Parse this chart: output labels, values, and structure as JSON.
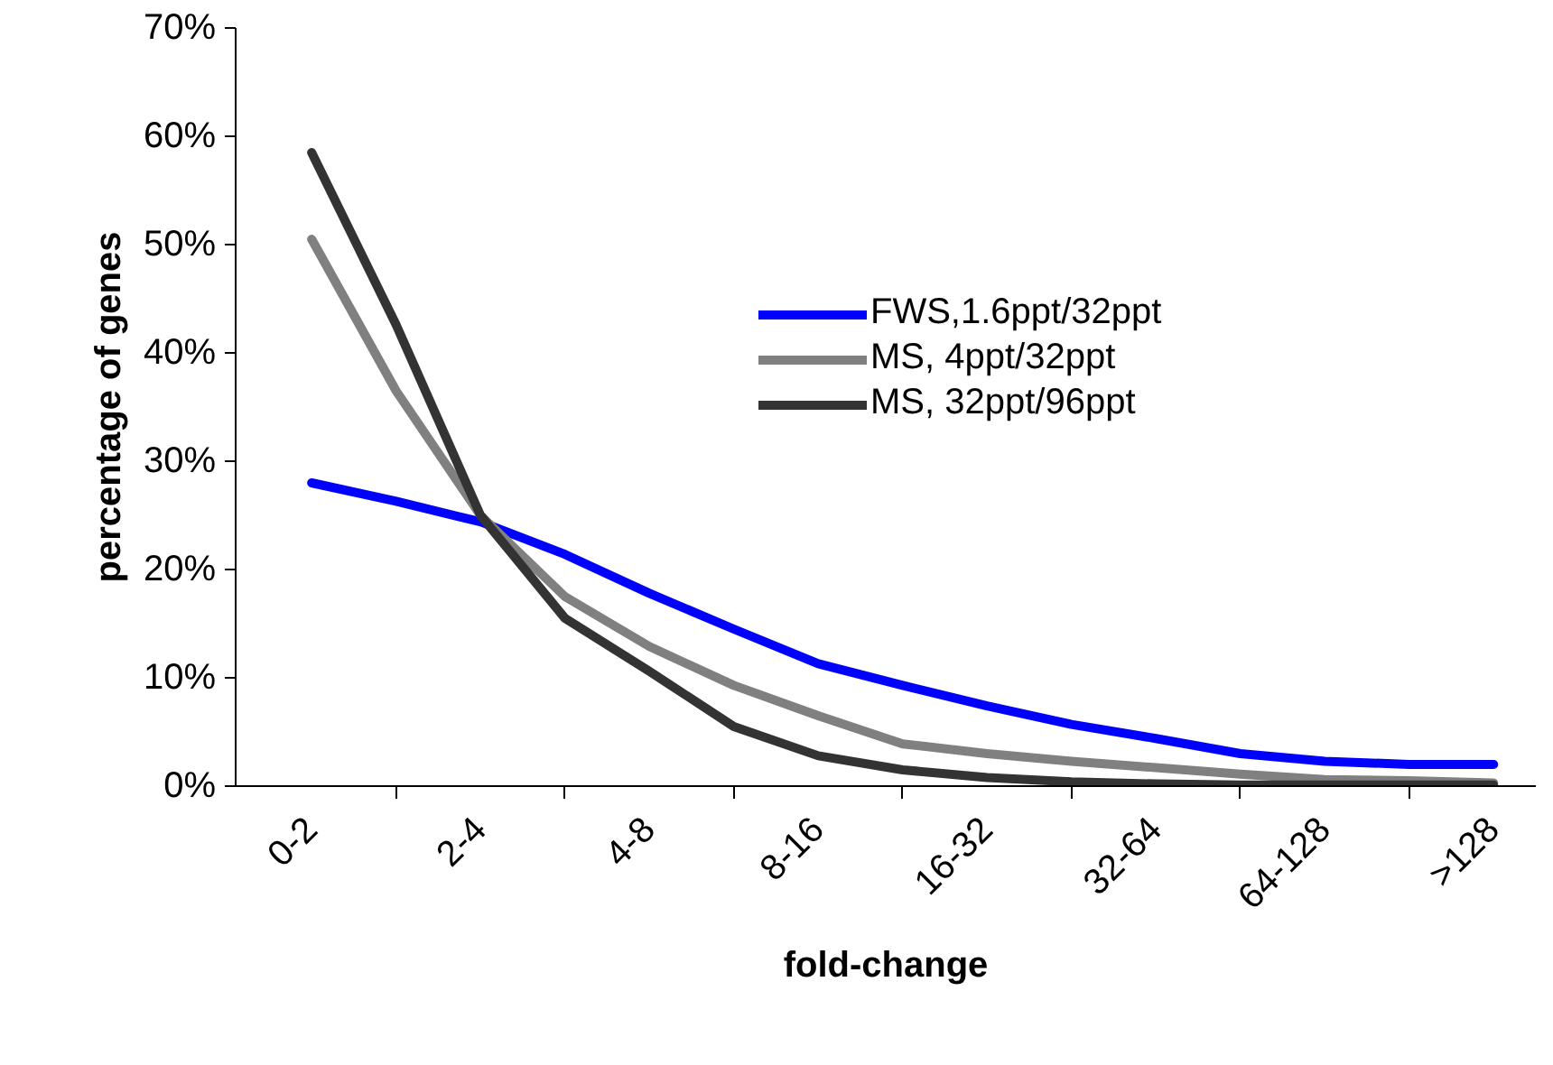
{
  "chart_data": {
    "type": "line",
    "xlabel": "fold-change",
    "ylabel": "percentage of genes",
    "categories": [
      "0-2",
      null,
      "2-4",
      null,
      "4-8",
      null,
      "8-16",
      null,
      "16-32",
      null,
      "32-64",
      null,
      "64-128",
      null,
      ">128"
    ],
    "series": [
      {
        "name": "FWS,1.6ppt/32ppt",
        "color": "#0000ff",
        "values": [
          28.0,
          26.3,
          24.4,
          21.4,
          17.8,
          14.5,
          11.3,
          9.3,
          7.4,
          5.7,
          4.4,
          3.0,
          2.3,
          2.0,
          2.0
        ]
      },
      {
        "name": "MS, 4ppt/32ppt",
        "color": "#808080",
        "values": [
          50.5,
          36.5,
          25.0,
          17.5,
          12.9,
          9.3,
          6.5,
          3.9,
          3.0,
          2.3,
          1.7,
          1.1,
          0.6,
          0.5,
          0.3
        ]
      },
      {
        "name": "MS, 32ppt/96ppt",
        "color": "#333333",
        "values": [
          58.5,
          42.6,
          25.0,
          15.5,
          10.6,
          5.5,
          2.8,
          1.5,
          0.8,
          0.4,
          0.2,
          0.1,
          0.1,
          0.1,
          0.1
        ]
      }
    ],
    "ylim": [
      0,
      70
    ],
    "yticks": [
      {
        "value": 0,
        "label": "0%"
      },
      {
        "value": 10,
        "label": "10%"
      },
      {
        "value": 20,
        "label": "20%"
      },
      {
        "value": 30,
        "label": "30%"
      },
      {
        "value": 40,
        "label": "40%"
      },
      {
        "value": 50,
        "label": "50%"
      },
      {
        "value": 60,
        "label": "60%"
      },
      {
        "value": 70,
        "label": "70%"
      }
    ],
    "grid": false,
    "legend": "top right",
    "marker": "none",
    "line_style": "solid"
  }
}
